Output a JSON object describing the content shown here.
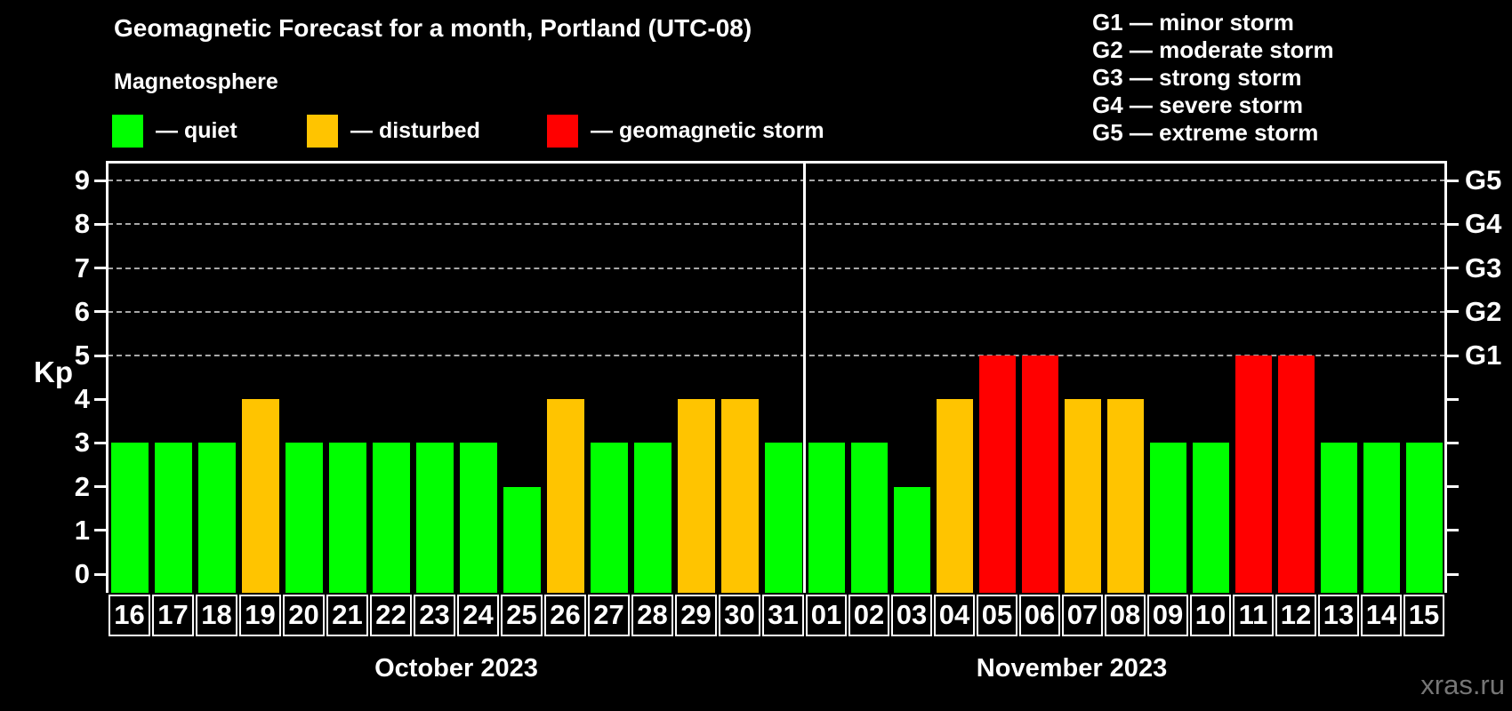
{
  "title": "Geomagnetic Forecast for a month, Portland (UTC-08)",
  "subtitle": "Magnetosphere",
  "legend": {
    "items": [
      {
        "label": "— quiet",
        "status": "quiet",
        "color": "#00ff00"
      },
      {
        "label": "— disturbed",
        "status": "disturbed",
        "color": "#ffc400"
      },
      {
        "label": "— geomagnetic storm",
        "status": "storm",
        "color": "#ff0000"
      }
    ]
  },
  "g_legend": [
    "G1 — minor storm",
    "G2 — moderate storm",
    "G3 — strong storm",
    "G4 — severe storm",
    "G5 — extreme storm"
  ],
  "watermark": "xras.ru",
  "chart_data": {
    "type": "bar",
    "title": "Geomagnetic Forecast for a month, Portland (UTC-08)",
    "ylabel": "Kp",
    "ylim": [
      0,
      9
    ],
    "grid": "dashed horizontal at Kp 5-9 only",
    "legend_position": "top",
    "left_ticks": [
      0,
      1,
      2,
      3,
      4,
      5,
      6,
      7,
      8,
      9
    ],
    "gridlines": [
      5,
      6,
      7,
      8,
      9
    ],
    "right_axis": [
      {
        "kp": 5,
        "label": "G1"
      },
      {
        "kp": 6,
        "label": "G2"
      },
      {
        "kp": 7,
        "label": "G3"
      },
      {
        "kp": 8,
        "label": "G4"
      },
      {
        "kp": 9,
        "label": "G5"
      }
    ],
    "status_colors": {
      "quiet": "#00ff00",
      "disturbed": "#ffc400",
      "storm": "#ff0000"
    },
    "months": [
      {
        "label": "October 2023",
        "days": [
          {
            "day": "16",
            "kp": 3,
            "status": "quiet"
          },
          {
            "day": "17",
            "kp": 3,
            "status": "quiet"
          },
          {
            "day": "18",
            "kp": 3,
            "status": "quiet"
          },
          {
            "day": "19",
            "kp": 4,
            "status": "disturbed"
          },
          {
            "day": "20",
            "kp": 3,
            "status": "quiet"
          },
          {
            "day": "21",
            "kp": 3,
            "status": "quiet"
          },
          {
            "day": "22",
            "kp": 3,
            "status": "quiet"
          },
          {
            "day": "23",
            "kp": 3,
            "status": "quiet"
          },
          {
            "day": "24",
            "kp": 3,
            "status": "quiet"
          },
          {
            "day": "25",
            "kp": 2,
            "status": "quiet"
          },
          {
            "day": "26",
            "kp": 4,
            "status": "disturbed"
          },
          {
            "day": "27",
            "kp": 3,
            "status": "quiet"
          },
          {
            "day": "28",
            "kp": 3,
            "status": "quiet"
          },
          {
            "day": "29",
            "kp": 4,
            "status": "disturbed"
          },
          {
            "day": "30",
            "kp": 4,
            "status": "disturbed"
          },
          {
            "day": "31",
            "kp": 3,
            "status": "quiet"
          }
        ]
      },
      {
        "label": "November 2023",
        "days": [
          {
            "day": "01",
            "kp": 3,
            "status": "quiet"
          },
          {
            "day": "02",
            "kp": 3,
            "status": "quiet"
          },
          {
            "day": "03",
            "kp": 2,
            "status": "quiet"
          },
          {
            "day": "04",
            "kp": 4,
            "status": "disturbed"
          },
          {
            "day": "05",
            "kp": 5,
            "status": "storm"
          },
          {
            "day": "06",
            "kp": 5,
            "status": "storm"
          },
          {
            "day": "07",
            "kp": 4,
            "status": "disturbed"
          },
          {
            "day": "08",
            "kp": 4,
            "status": "disturbed"
          },
          {
            "day": "09",
            "kp": 3,
            "status": "quiet"
          },
          {
            "day": "10",
            "kp": 3,
            "status": "quiet"
          },
          {
            "day": "11",
            "kp": 5,
            "status": "storm"
          },
          {
            "day": "12",
            "kp": 5,
            "status": "storm"
          },
          {
            "day": "13",
            "kp": 3,
            "status": "quiet"
          },
          {
            "day": "14",
            "kp": 3,
            "status": "quiet"
          },
          {
            "day": "15",
            "kp": 3,
            "status": "quiet"
          }
        ]
      }
    ]
  }
}
